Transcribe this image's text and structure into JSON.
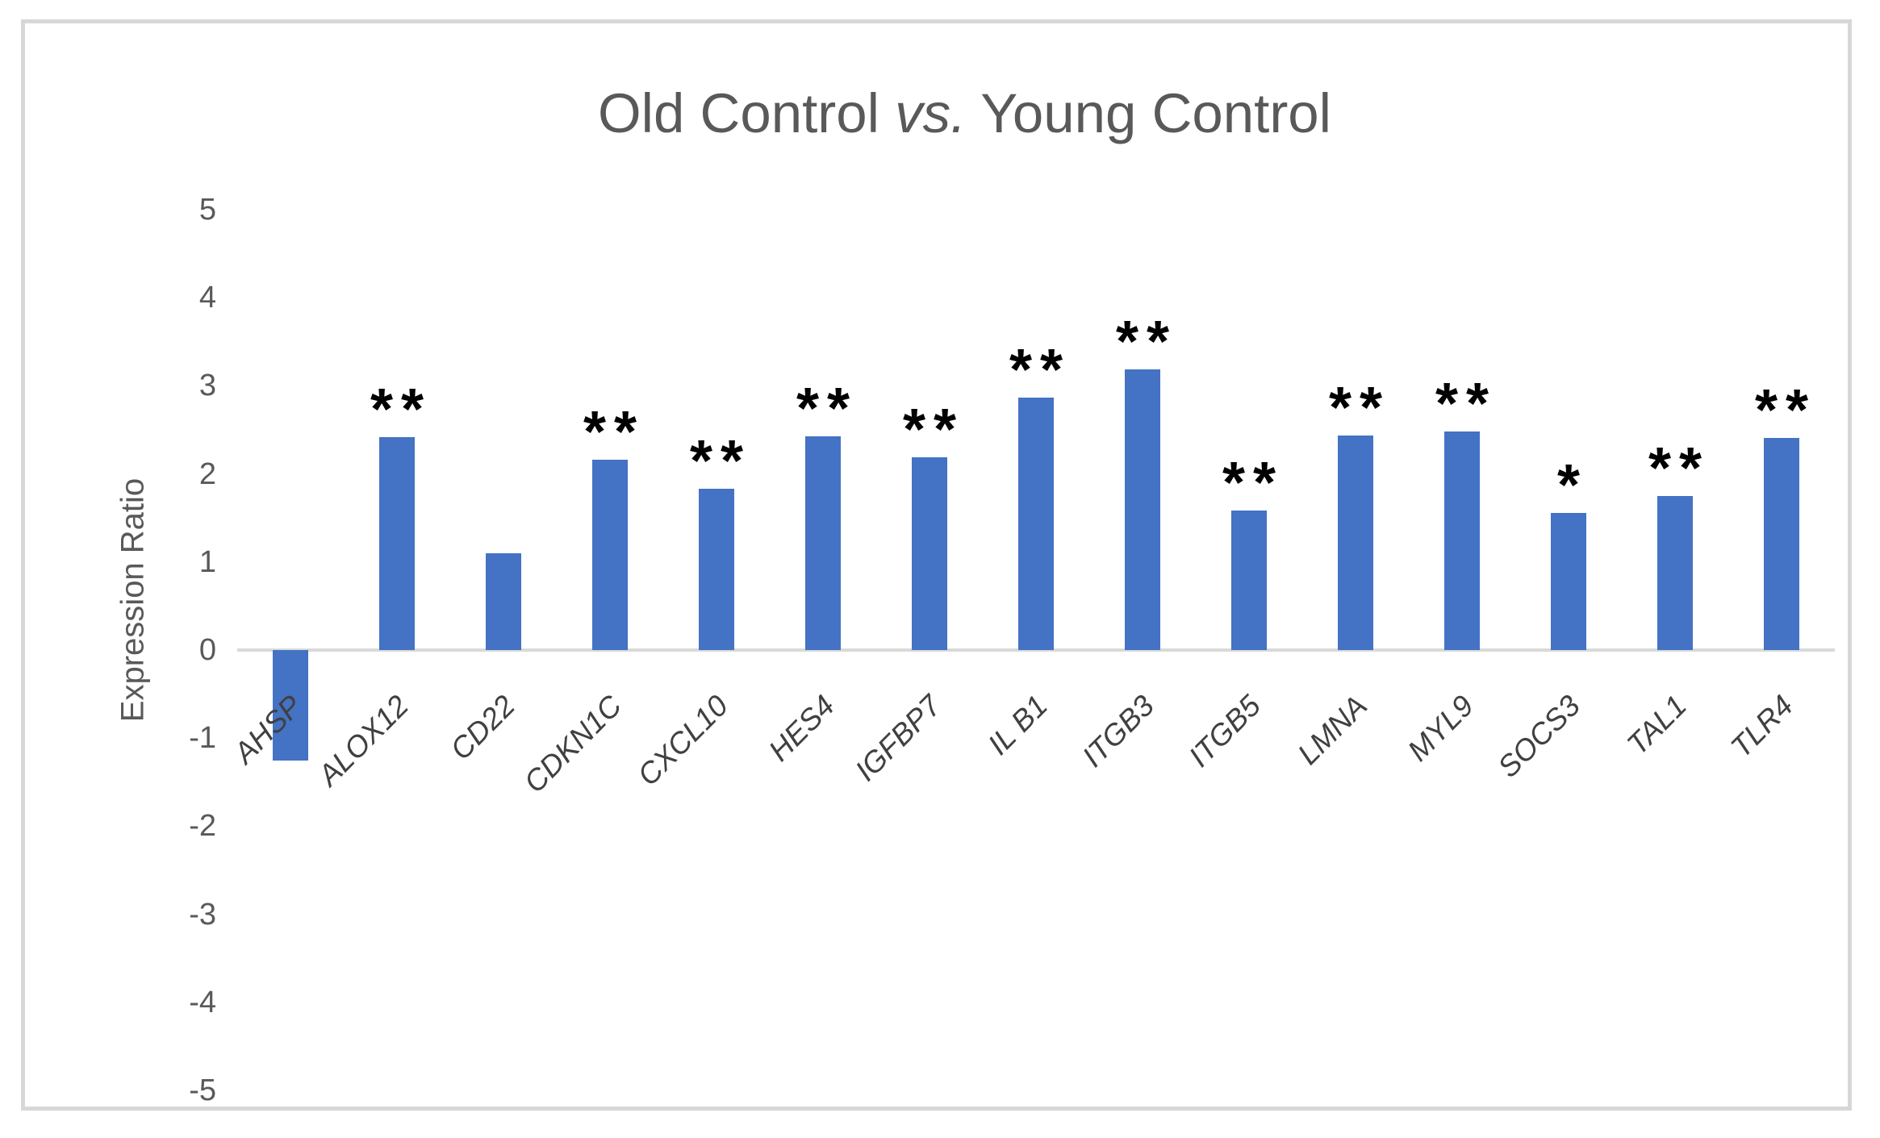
{
  "chart_data": {
    "type": "bar",
    "title": "Old Control vs. Young Control",
    "title_parts": {
      "pre": "Old Control ",
      "italic": "vs.",
      "post": " Young Control"
    },
    "ylabel": "Expression Ratio",
    "xlabel": "",
    "ylim": [
      -5,
      5
    ],
    "yticks": [
      5,
      4,
      3,
      2,
      1,
      0,
      -1,
      -2,
      -3,
      -4,
      -5
    ],
    "grid": false,
    "legend": "none",
    "categories": [
      "AHSP",
      "ALOX12",
      "CD22",
      "CDKN1C",
      "CXCL10",
      "HES4",
      "IGFBP7",
      "IL B1",
      "ITGB3",
      "ITGB5",
      "LMNA",
      "MYL9",
      "SOCS3",
      "TAL1",
      "TLR4"
    ],
    "values": [
      -1.25,
      2.42,
      1.1,
      2.16,
      1.83,
      2.43,
      2.19,
      2.87,
      3.19,
      1.58,
      2.44,
      2.48,
      1.56,
      1.75,
      2.41
    ],
    "significance": [
      "",
      "**",
      "",
      "**",
      "**",
      "**",
      "**",
      "**",
      "**",
      "**",
      "**",
      "**",
      "*",
      "**",
      "**"
    ],
    "colors": {
      "bar": "#4472c4",
      "axis_line": "#d9d9d9",
      "frame_border": "#d7d7d7",
      "title_text": "#595959",
      "tick_text": "#595959",
      "category_text": "#404040",
      "significance_text": "#000000"
    }
  }
}
